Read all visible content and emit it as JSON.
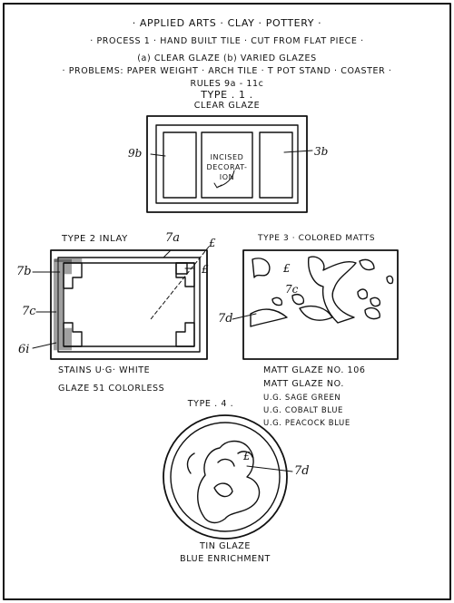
{
  "plate": {
    "title": "· APPLIED ARTS · CLAY · POTTERY ·",
    "process": "· PROCESS 1 · HAND  BUILT TILE · CUT FROM FLAT PIECE ·",
    "glazes": "(a) CLEAR GLAZE (b) VARIED GLAZES",
    "problems": "· PROBLEMS: PAPER WEIGHT · ARCH TILE · T POT STAND · COASTER ·",
    "rules": "RULES 9a - 11c"
  },
  "type1": {
    "heading": "TYPE . 1 .",
    "glaze": "CLEAR GLAZE",
    "label_left": "9b",
    "label_right": "3b",
    "center_label": [
      "INCISED",
      "DECORAT-",
      "ION"
    ]
  },
  "type2": {
    "heading": "TYPE 2 INLAY",
    "labels": {
      "top": "7a",
      "top_right": "£",
      "right": "£",
      "left_top": "7b",
      "left_mid": "7c",
      "left_bottom": "6i"
    },
    "notes": [
      "STAINS U·G· WHITE",
      "GLAZE  51 COLORLESS"
    ]
  },
  "type3": {
    "heading": "TYPE 3 · COLORED MATTS",
    "labels": {
      "left": "7d",
      "mid": "7c",
      "top": "£"
    },
    "notes": [
      "MATT GLAZE NO. 106",
      "MATT GLAZE  NO.",
      "U.G. SAGE GREEN",
      "U.G. COBALT BLUE",
      "U.G. PEACOCK BLUE"
    ]
  },
  "type4": {
    "heading": "TYPE . 4 .",
    "labels": {
      "right": "7d",
      "inner": "£"
    },
    "caption": [
      "TIN GLAZE",
      "BLUE ENRICHMENT"
    ]
  }
}
